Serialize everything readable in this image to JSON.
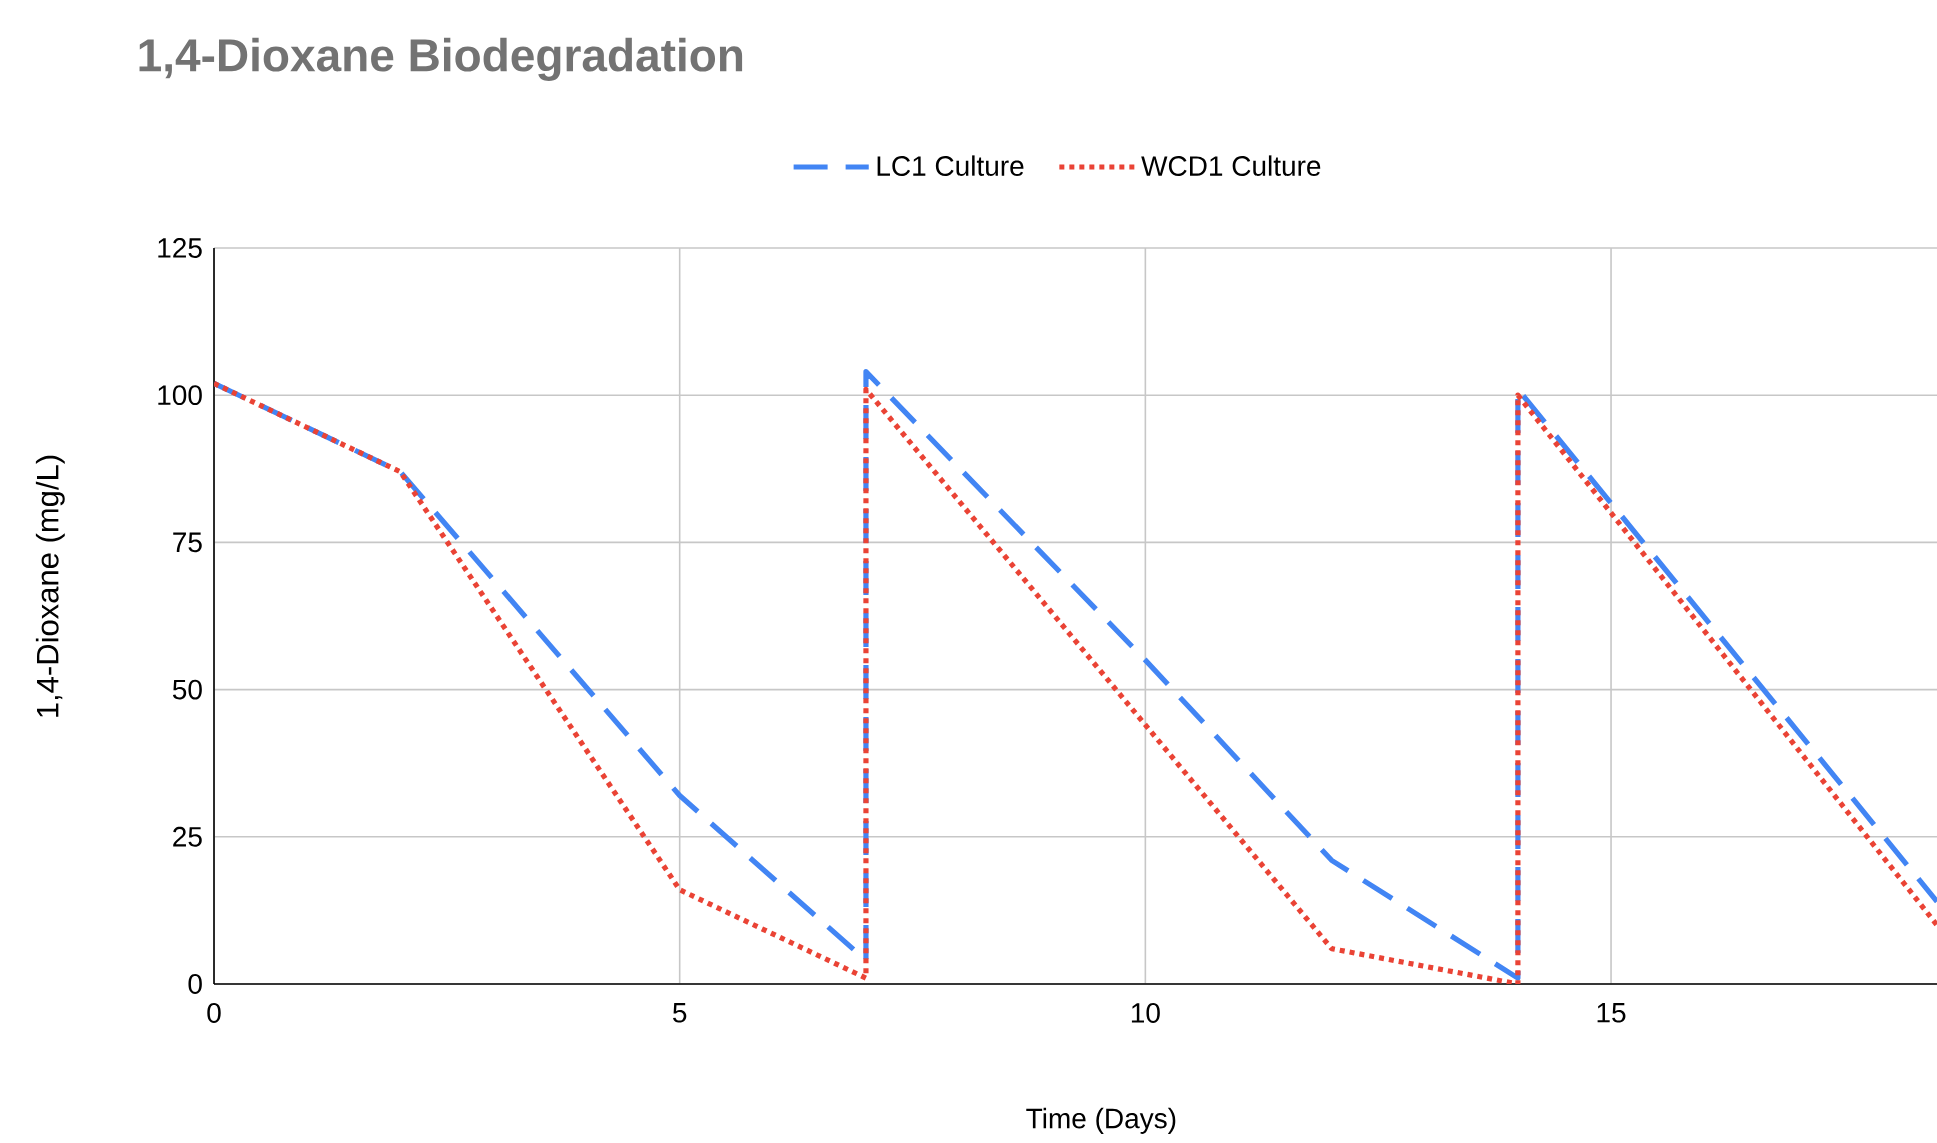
{
  "chart_data": {
    "type": "line",
    "title": "1,4-Dioxane Biodegradation",
    "xlabel": "Time (Days)",
    "ylabel": "1,4-Dioxane (mg/L)",
    "xlim": [
      0,
      18.5
    ],
    "xticks": [
      0,
      5,
      10,
      15
    ],
    "ylim": [
      0,
      125
    ],
    "yticks": [
      0,
      25,
      50,
      75,
      100,
      125
    ],
    "grid": true,
    "legend": "top",
    "series": [
      {
        "name": "LC1 Culture",
        "color": "#4285f4",
        "line_style": "dashed",
        "x": [
          0,
          2,
          5,
          7,
          7,
          10,
          12,
          14,
          14,
          18.5
        ],
        "values": [
          102,
          87,
          32,
          4,
          104,
          55,
          21,
          1,
          101,
          14
        ]
      },
      {
        "name": "WCD1 Culture",
        "color": "#ea4335",
        "line_style": "dotted",
        "x": [
          0,
          2,
          5,
          7,
          7,
          10,
          12,
          14,
          14,
          18.5
        ],
        "values": [
          102,
          87,
          16,
          1,
          101,
          44,
          6,
          0,
          100,
          10
        ]
      }
    ]
  }
}
